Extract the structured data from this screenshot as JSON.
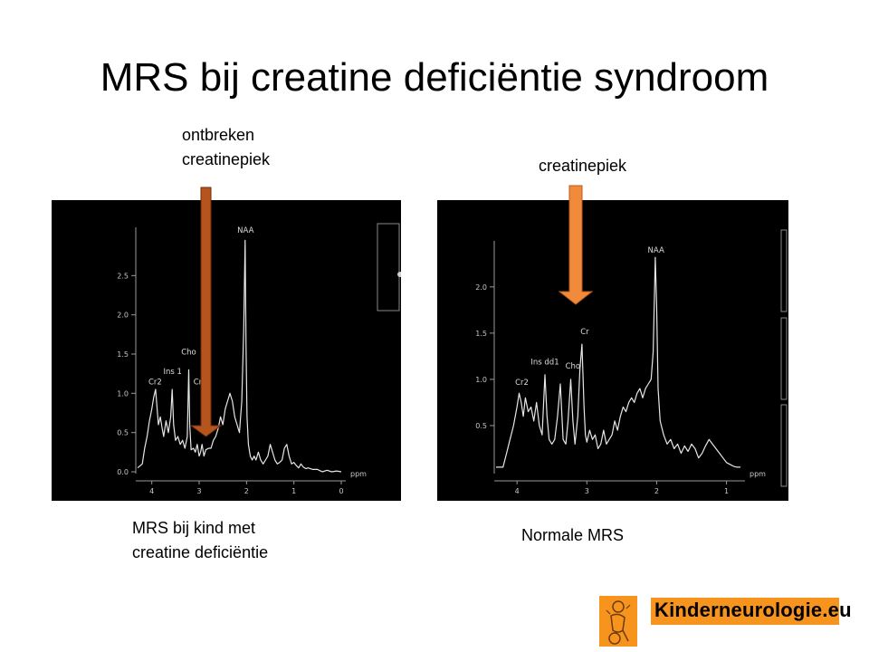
{
  "slide": {
    "title": "MRS bij creatine deficiëntie syndroom",
    "annotation_left": [
      "ontbreken",
      "creatinepiek"
    ],
    "annotation_right": "creatinepiek",
    "caption_left": [
      "MRS bij kind met",
      "creatine deficiëntie"
    ],
    "caption_right": "Normale MRS",
    "brand_text": "Kinderneurologie.eu",
    "colors": {
      "arrow_left": "#b5541c",
      "arrow_right": "#f28a3c",
      "brand_bg": "#f7941d"
    }
  },
  "chart_data": [
    {
      "type": "line",
      "xlabel": "ppm",
      "x_reversed": true,
      "xlim": [
        4.3,
        0
      ],
      "x_ticks": [
        4,
        3,
        2,
        1,
        0
      ],
      "ylim": [
        0,
        3.0
      ],
      "y_ticks": [
        "0.0",
        "0.5",
        "1.0",
        "1.5",
        "2.0",
        "2.5"
      ],
      "peak_labels": [
        {
          "label": "Cr2",
          "x": 3.93,
          "y": 1.07
        },
        {
          "label": "Ins 1",
          "x": 3.56,
          "y": 1.2
        },
        {
          "label": "Cho",
          "x": 3.22,
          "y": 1.45
        },
        {
          "label": "Cr",
          "x": 3.03,
          "y": 1.07
        },
        {
          "label": "NAA",
          "x": 2.02,
          "y": 3.0
        }
      ],
      "spectrum": {
        "x": [
          4.3,
          4.2,
          4.15,
          4.1,
          4.05,
          4.0,
          3.96,
          3.92,
          3.9,
          3.86,
          3.82,
          3.78,
          3.75,
          3.7,
          3.65,
          3.6,
          3.57,
          3.54,
          3.5,
          3.45,
          3.4,
          3.35,
          3.3,
          3.25,
          3.22,
          3.2,
          3.17,
          3.12,
          3.08,
          3.04,
          3.0,
          2.97,
          2.94,
          2.9,
          2.86,
          2.8,
          2.75,
          2.7,
          2.65,
          2.6,
          2.55,
          2.5,
          2.45,
          2.4,
          2.35,
          2.3,
          2.25,
          2.2,
          2.15,
          2.1,
          2.06,
          2.03,
          2.01,
          1.99,
          1.96,
          1.92,
          1.88,
          1.84,
          1.8,
          1.75,
          1.7,
          1.65,
          1.6,
          1.55,
          1.5,
          1.45,
          1.4,
          1.35,
          1.3,
          1.25,
          1.2,
          1.15,
          1.1,
          1.05,
          1.0,
          0.95,
          0.9,
          0.85,
          0.8,
          0.75,
          0.7,
          0.6,
          0.5,
          0.4,
          0.3,
          0.2,
          0.1,
          0.0
        ],
        "y": [
          0.05,
          0.1,
          0.3,
          0.45,
          0.65,
          0.8,
          0.95,
          1.05,
          0.9,
          0.6,
          0.7,
          0.55,
          0.45,
          0.65,
          0.5,
          0.7,
          1.05,
          0.6,
          0.4,
          0.45,
          0.35,
          0.4,
          0.3,
          0.45,
          1.3,
          0.6,
          0.28,
          0.3,
          0.25,
          0.35,
          0.2,
          0.25,
          0.35,
          0.2,
          0.28,
          0.3,
          0.3,
          0.4,
          0.45,
          0.55,
          0.7,
          0.6,
          0.8,
          0.9,
          1.0,
          0.9,
          0.7,
          0.6,
          0.5,
          0.9,
          1.8,
          2.95,
          1.6,
          0.7,
          0.35,
          0.2,
          0.15,
          0.2,
          0.15,
          0.25,
          0.15,
          0.1,
          0.15,
          0.2,
          0.35,
          0.25,
          0.15,
          0.1,
          0.12,
          0.15,
          0.3,
          0.35,
          0.2,
          0.1,
          0.12,
          0.08,
          0.05,
          0.1,
          0.06,
          0.04,
          0.05,
          0.03,
          0.03,
          0.0,
          0.02,
          0.0,
          0.01,
          0.0
        ]
      }
    },
    {
      "type": "line",
      "xlabel": "ppm",
      "x_reversed": true,
      "xlim": [
        4.3,
        0.8
      ],
      "x_ticks": [
        4,
        3,
        2,
        1
      ],
      "ylim": [
        0,
        2.4
      ],
      "y_ticks": [
        "0.5",
        "1.0",
        "1.5",
        "2.0"
      ],
      "peak_labels": [
        {
          "label": "Cr2",
          "x": 3.93,
          "y": 0.9
        },
        {
          "label": "Ins dd1",
          "x": 3.6,
          "y": 1.12
        },
        {
          "label": "Cho",
          "x": 3.2,
          "y": 1.08
        },
        {
          "label": "Cr",
          "x": 3.03,
          "y": 1.45
        },
        {
          "label": "NAA",
          "x": 2.01,
          "y": 2.33
        }
      ],
      "spectrum": {
        "x": [
          4.3,
          4.2,
          4.15,
          4.1,
          4.05,
          4.0,
          3.97,
          3.94,
          3.91,
          3.88,
          3.84,
          3.8,
          3.76,
          3.72,
          3.68,
          3.64,
          3.6,
          3.57,
          3.54,
          3.5,
          3.46,
          3.42,
          3.38,
          3.34,
          3.3,
          3.27,
          3.23,
          3.2,
          3.17,
          3.13,
          3.1,
          3.07,
          3.04,
          3.02,
          3.0,
          2.96,
          2.92,
          2.88,
          2.84,
          2.8,
          2.76,
          2.72,
          2.68,
          2.64,
          2.6,
          2.56,
          2.52,
          2.48,
          2.44,
          2.4,
          2.36,
          2.32,
          2.28,
          2.24,
          2.2,
          2.16,
          2.12,
          2.08,
          2.05,
          2.02,
          2.0,
          1.98,
          1.95,
          1.9,
          1.85,
          1.8,
          1.75,
          1.7,
          1.65,
          1.6,
          1.55,
          1.5,
          1.45,
          1.4,
          1.35,
          1.3,
          1.25,
          1.2,
          1.15,
          1.1,
          1.05,
          1.0,
          0.95,
          0.9,
          0.85,
          0.8
        ],
        "y": [
          0.05,
          0.05,
          0.2,
          0.35,
          0.5,
          0.7,
          0.85,
          0.75,
          0.6,
          0.8,
          0.65,
          0.7,
          0.55,
          0.75,
          0.5,
          0.4,
          1.05,
          0.6,
          0.35,
          0.3,
          0.35,
          0.6,
          0.95,
          0.35,
          0.3,
          0.55,
          1.0,
          0.55,
          0.3,
          0.6,
          1.1,
          1.38,
          0.7,
          0.4,
          0.32,
          0.45,
          0.35,
          0.4,
          0.25,
          0.3,
          0.45,
          0.3,
          0.35,
          0.4,
          0.55,
          0.45,
          0.6,
          0.7,
          0.65,
          0.75,
          0.8,
          0.75,
          0.85,
          0.9,
          0.8,
          0.9,
          0.95,
          1.0,
          1.3,
          2.32,
          1.8,
          0.9,
          0.55,
          0.4,
          0.3,
          0.35,
          0.25,
          0.3,
          0.2,
          0.28,
          0.22,
          0.3,
          0.25,
          0.15,
          0.2,
          0.28,
          0.35,
          0.3,
          0.25,
          0.2,
          0.15,
          0.1,
          0.08,
          0.06,
          0.05,
          0.05
        ]
      }
    }
  ]
}
